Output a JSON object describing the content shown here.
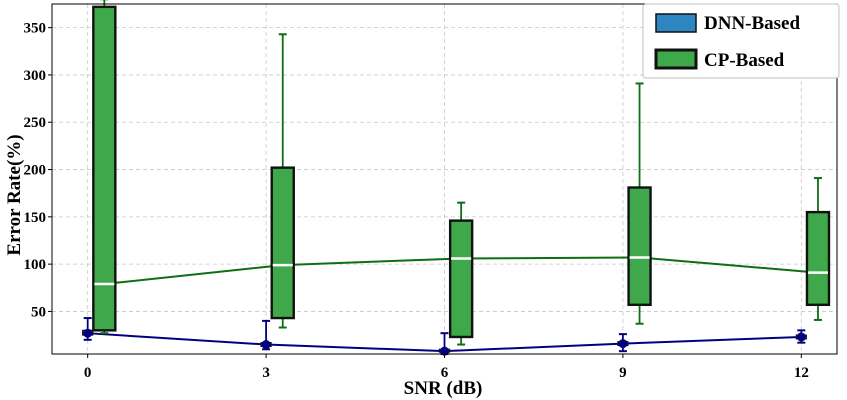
{
  "chart_data": {
    "type": "box",
    "xlabel": "SNR (dB)",
    "ylabel": "Error Rate(%)",
    "ylim": [
      5,
      375
    ],
    "yticks": [
      50,
      100,
      150,
      200,
      250,
      300,
      350
    ],
    "categories": [
      "0",
      "3",
      "6",
      "9",
      "12"
    ],
    "x": [
      0,
      3,
      6,
      9,
      12
    ],
    "grid": true,
    "legend_position": "top-right",
    "series": [
      {
        "name": "DNN-Based",
        "color": "#2e86c1",
        "line_color": "#000080",
        "medians": [
          27,
          15,
          8,
          16,
          23
        ],
        "q1": [
          25,
          13,
          7,
          14,
          21
        ],
        "q3": [
          30,
          17,
          10,
          18,
          25
        ],
        "whisker_low": [
          20,
          10,
          5,
          8,
          17
        ],
        "whisker_high": [
          43,
          40,
          27,
          26,
          30
        ]
      },
      {
        "name": "CP-Based",
        "color": "#3ea84a",
        "line_color": "#0e6e14",
        "medians": [
          79,
          99,
          106,
          107,
          91
        ],
        "q1": [
          30,
          43,
          23,
          57,
          57
        ],
        "q3": [
          372,
          202,
          146,
          181,
          155
        ],
        "whisker_low": [
          27,
          33,
          15,
          37,
          41
        ],
        "whisker_high": [
          380,
          343,
          165,
          291,
          191
        ]
      }
    ]
  }
}
